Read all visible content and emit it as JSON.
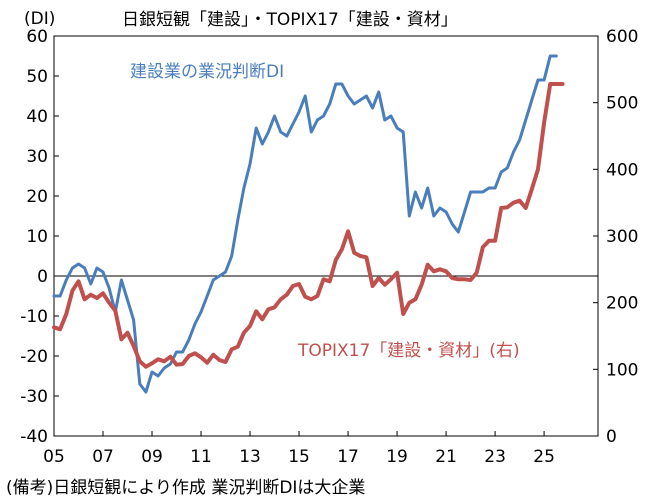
{
  "chart_data": {
    "type": "line",
    "title": "日銀短観「建設」・TOPIX17「建設・資材」",
    "ylabel_left": "(DI)",
    "xlim": [
      2005.0,
      2027.2
    ],
    "x_ticks": [
      2005,
      2007,
      2009,
      2011,
      2013,
      2015,
      2017,
      2019,
      2021,
      2023,
      2025
    ],
    "x_tick_labels": [
      "05",
      "07",
      "09",
      "11",
      "13",
      "15",
      "17",
      "19",
      "21",
      "23",
      "25"
    ],
    "y_left_ticks": [
      60,
      50,
      40,
      30,
      20,
      10,
      0,
      -10,
      -20,
      -30,
      -40
    ],
    "y_left_range": [
      -40,
      60
    ],
    "y_right_ticks": [
      600,
      500,
      400,
      300,
      200,
      100,
      0
    ],
    "y_right_range": [
      0,
      600
    ],
    "zero_line": true,
    "series": [
      {
        "name": "建設業の業況判断DI",
        "axis": "left",
        "color": "#4a7ebb",
        "x": [
          2005.0,
          2005.25,
          2005.5,
          2005.75,
          2006.0,
          2006.25,
          2006.5,
          2006.75,
          2007.0,
          2007.25,
          2007.5,
          2007.75,
          2008.0,
          2008.25,
          2008.5,
          2008.75,
          2009.0,
          2009.25,
          2009.5,
          2009.75,
          2010.0,
          2010.25,
          2010.5,
          2010.75,
          2011.0,
          2011.25,
          2011.5,
          2011.75,
          2012.0,
          2012.25,
          2012.5,
          2012.75,
          2013.0,
          2013.25,
          2013.5,
          2013.75,
          2014.0,
          2014.25,
          2014.5,
          2014.75,
          2015.0,
          2015.25,
          2015.5,
          2015.75,
          2016.0,
          2016.25,
          2016.5,
          2016.75,
          2017.0,
          2017.25,
          2017.5,
          2017.75,
          2018.0,
          2018.25,
          2018.5,
          2018.75,
          2019.0,
          2019.25,
          2019.5,
          2019.75,
          2020.0,
          2020.25,
          2020.5,
          2020.75,
          2021.0,
          2021.25,
          2021.5,
          2021.75,
          2022.0,
          2022.25,
          2022.5,
          2022.75,
          2023.0,
          2023.25,
          2023.5,
          2023.75,
          2024.0,
          2024.25,
          2024.5,
          2024.75,
          2025.0,
          2025.25,
          2025.5
        ],
        "values": [
          -5,
          -5,
          -1,
          2,
          3,
          2,
          -2,
          2,
          1,
          -3,
          -9,
          -1,
          -6,
          -11,
          -27,
          -29,
          -24,
          -25,
          -23,
          -22,
          -19,
          -19,
          -16,
          -12,
          -9,
          -5,
          -1,
          0,
          1,
          5,
          14,
          22,
          28,
          37,
          33,
          36,
          40,
          36,
          35,
          38,
          41,
          45,
          36,
          39,
          40,
          43,
          48,
          48,
          45,
          43,
          44,
          45,
          42,
          46,
          39,
          40,
          37,
          36,
          15,
          21,
          17,
          22,
          15,
          17,
          16,
          13,
          11,
          16,
          21,
          21,
          21,
          22,
          22,
          26,
          27,
          31,
          34,
          39,
          44,
          49,
          49,
          55,
          55
        ]
      },
      {
        "name": "TOPIX17「建設・資材」(右)",
        "axis": "right",
        "color": "#c0504d",
        "x": [
          2005.0,
          2005.25,
          2005.5,
          2005.75,
          2006.0,
          2006.25,
          2006.5,
          2006.75,
          2007.0,
          2007.25,
          2007.5,
          2007.75,
          2008.0,
          2008.25,
          2008.5,
          2008.75,
          2009.0,
          2009.25,
          2009.5,
          2009.75,
          2010.0,
          2010.25,
          2010.5,
          2010.75,
          2011.0,
          2011.25,
          2011.5,
          2011.75,
          2012.0,
          2012.25,
          2012.5,
          2012.75,
          2013.0,
          2013.25,
          2013.5,
          2013.75,
          2014.0,
          2014.25,
          2014.5,
          2014.75,
          2015.0,
          2015.25,
          2015.5,
          2015.75,
          2016.0,
          2016.25,
          2016.5,
          2016.75,
          2017.0,
          2017.25,
          2017.5,
          2017.75,
          2018.0,
          2018.25,
          2018.5,
          2018.75,
          2019.0,
          2019.25,
          2019.5,
          2019.75,
          2020.0,
          2020.25,
          2020.5,
          2020.75,
          2021.0,
          2021.25,
          2021.5,
          2021.75,
          2022.0,
          2022.25,
          2022.5,
          2022.75,
          2023.0,
          2023.25,
          2023.5,
          2023.75,
          2024.0,
          2024.25,
          2024.5,
          2024.75,
          2025.0,
          2025.25,
          2025.5,
          2025.75
        ],
        "values": [
          163,
          160,
          183,
          218,
          232,
          205,
          212,
          207,
          214,
          200,
          188,
          145,
          155,
          135,
          112,
          104,
          109,
          115,
          112,
          119,
          107,
          108,
          120,
          124,
          118,
          110,
          122,
          114,
          111,
          130,
          134,
          155,
          165,
          187,
          175,
          190,
          193,
          205,
          212,
          225,
          228,
          209,
          205,
          210,
          235,
          232,
          264,
          280,
          307,
          275,
          270,
          268,
          225,
          237,
          227,
          235,
          245,
          183,
          200,
          205,
          227,
          257,
          247,
          250,
          247,
          237,
          235,
          235,
          234,
          245,
          283,
          293,
          293,
          342,
          343,
          350,
          353,
          342,
          370,
          400,
          470,
          528,
          528,
          528
        ]
      }
    ],
    "annotations": [
      "建設業の業況判断DI",
      "TOPIX17「建設・資材」(右)"
    ]
  },
  "footnote": "(備考)日銀短観により作成 業況判断DIは大企業"
}
